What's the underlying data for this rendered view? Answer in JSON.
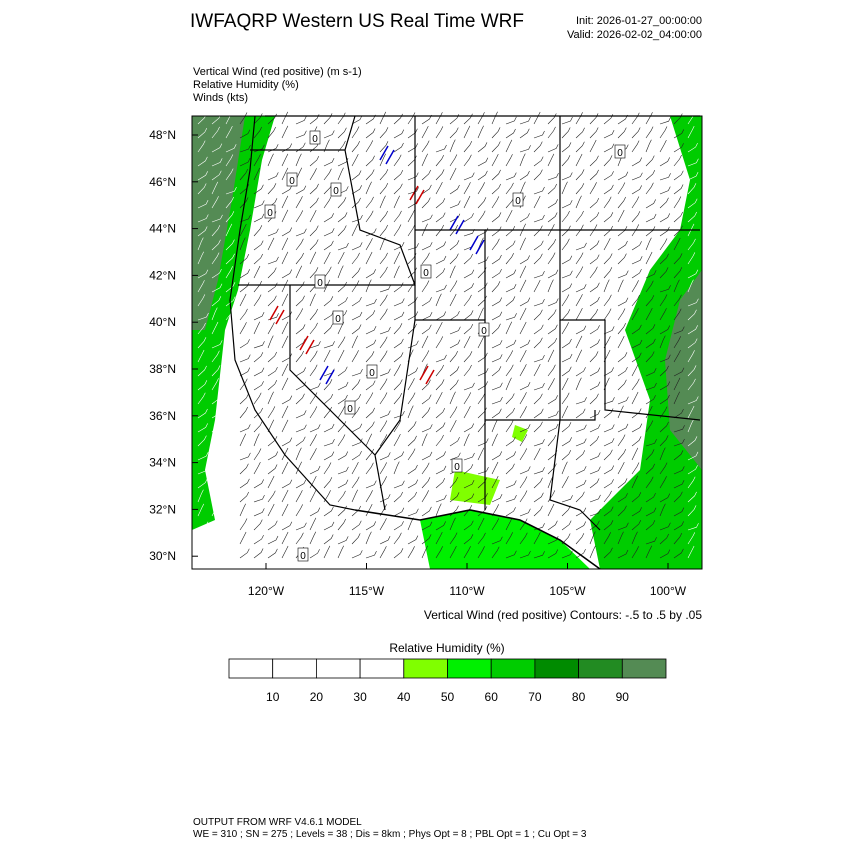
{
  "header": {
    "title": "IWFAQRP Western US Real Time WRF",
    "init": "Init: 2026-01-27_00:00:00",
    "valid": "Valid: 2026-02-02_04:00:00"
  },
  "fields": [
    "Vertical Wind (red positive)   (m s-1)",
    "Relative Humidity   (%)",
    "Winds   (kts)"
  ],
  "map": {
    "lat_labels": [
      "48°N",
      "46°N",
      "44°N",
      "42°N",
      "40°N",
      "38°N",
      "36°N",
      "34°N",
      "32°N",
      "30°N"
    ],
    "lon_labels": [
      "120°W",
      "115°W",
      "110°W",
      "105°W",
      "100°W"
    ],
    "contour_note": "Vertical Wind (red positive) Contours: -.5 to .5 by .05",
    "contour_labels": [
      "0",
      "0",
      "0",
      "0",
      "0",
      "0",
      "0",
      "0",
      "0",
      "0",
      "0",
      "0",
      "0",
      "0"
    ]
  },
  "colorbar": {
    "title": "Relative Humidity  (%)",
    "labels": [
      "10",
      "20",
      "30",
      "40",
      "50",
      "60",
      "70",
      "80",
      "90"
    ],
    "colors": [
      "#ffffff",
      "#ffffff",
      "#ffffff",
      "#ffffff",
      "#80ff00",
      "#00f000",
      "#00cc00",
      "#008b00",
      "#228b22",
      "#548b54"
    ]
  },
  "footer": {
    "line1": "OUTPUT FROM WRF V4.6.1 MODEL",
    "line2": "WE = 310 ; SN = 275 ; Levels = 38 ; Dis = 8km ; Phys Opt = 8 ; PBL Opt = 1 ; Cu Opt = 3"
  }
}
